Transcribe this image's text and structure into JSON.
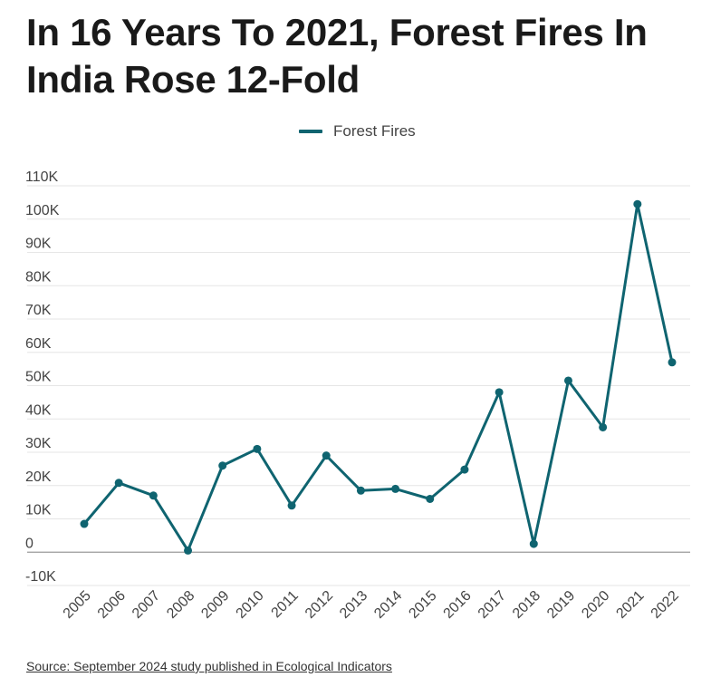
{
  "title": "In 16 Years To 2021, Forest Fires In India Rose 12-Fold",
  "legend": {
    "label": "Forest Fires",
    "color": "#0f6470"
  },
  "source": "Source: September 2024 study published in Ecological Indicators",
  "chart_data": {
    "type": "line",
    "title": "In 16 Years To 2021, Forest Fires In India Rose 12-Fold",
    "xlabel": "",
    "ylabel": "",
    "ylim": [
      -10000,
      110000
    ],
    "y_ticks": [
      -10000,
      0,
      10000,
      20000,
      30000,
      40000,
      50000,
      60000,
      70000,
      80000,
      90000,
      100000,
      110000
    ],
    "y_tick_labels": [
      "-10K",
      "0",
      "10K",
      "20K",
      "30K",
      "40K",
      "50K",
      "60K",
      "70K",
      "80K",
      "90K",
      "100K",
      "110K"
    ],
    "categories": [
      "2005",
      "2006",
      "2007",
      "2008",
      "2009",
      "2010",
      "2011",
      "2012",
      "2013",
      "2014",
      "2015",
      "2016",
      "2017",
      "2018",
      "2019",
      "2020",
      "2021",
      "2022"
    ],
    "series": [
      {
        "name": "Forest Fires",
        "color": "#0f6470",
        "values": [
          8500,
          20800,
          17000,
          500,
          26000,
          31000,
          14000,
          29000,
          18500,
          19000,
          16000,
          24800,
          48000,
          2500,
          51500,
          37500,
          104500,
          57000
        ]
      }
    ],
    "legend_position": "top-center",
    "grid": true
  }
}
